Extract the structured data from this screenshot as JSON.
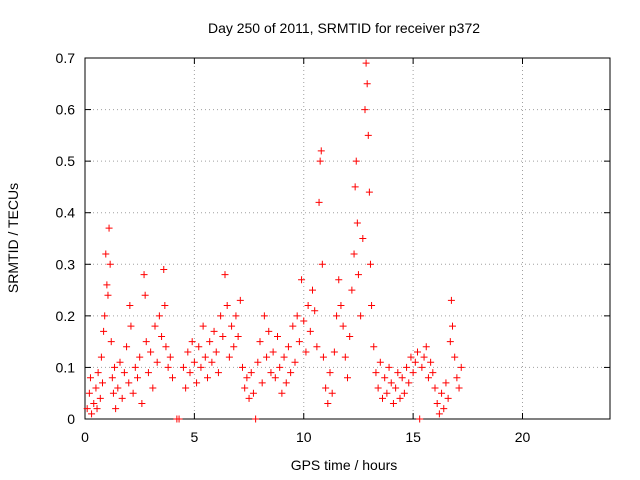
{
  "chart_data": {
    "type": "scatter",
    "title": "Day 250 of 2011, SRMTID for receiver p372",
    "xlabel": "GPS time / hours",
    "ylabel": "SRMTID / TECUs",
    "xlim": [
      0,
      24
    ],
    "ylim": [
      0,
      0.7
    ],
    "xticks": [
      0,
      5,
      10,
      15,
      20
    ],
    "xtick_labels": [
      "0",
      "5",
      "10",
      "15",
      "20"
    ],
    "yticks": [
      0,
      0.1,
      0.2,
      0.3,
      0.4,
      0.5,
      0.6,
      0.7
    ],
    "ytick_labels": [
      "0",
      "0.1",
      "0.2",
      "0.3",
      "0.4",
      "0.5",
      "0.6",
      "0.7"
    ],
    "grid": true,
    "marker": "+",
    "marker_color": "#ff0000",
    "series": [
      {
        "name": "SRMTID",
        "points": [
          [
            0.1,
            0.02
          ],
          [
            0.2,
            0.05
          ],
          [
            0.25,
            0.08
          ],
          [
            0.3,
            0.01
          ],
          [
            0.4,
            0.03
          ],
          [
            0.5,
            0.06
          ],
          [
            0.55,
            0.02
          ],
          [
            0.6,
            0.09
          ],
          [
            0.7,
            0.04
          ],
          [
            0.75,
            0.12
          ],
          [
            0.8,
            0.07
          ],
          [
            0.85,
            0.17
          ],
          [
            0.9,
            0.2
          ],
          [
            0.95,
            0.32
          ],
          [
            1.0,
            0.26
          ],
          [
            1.05,
            0.24
          ],
          [
            1.1,
            0.37
          ],
          [
            1.15,
            0.3
          ],
          [
            1.2,
            0.15
          ],
          [
            1.25,
            0.08
          ],
          [
            1.3,
            0.05
          ],
          [
            1.35,
            0.1
          ],
          [
            1.4,
            0.02
          ],
          [
            1.5,
            0.06
          ],
          [
            1.6,
            0.11
          ],
          [
            1.7,
            0.04
          ],
          [
            1.8,
            0.09
          ],
          [
            1.9,
            0.14
          ],
          [
            2.0,
            0.07
          ],
          [
            2.05,
            0.22
          ],
          [
            2.1,
            0.18
          ],
          [
            2.2,
            0.05
          ],
          [
            2.3,
            0.1
          ],
          [
            2.4,
            0.08
          ],
          [
            2.5,
            0.12
          ],
          [
            2.6,
            0.03
          ],
          [
            2.7,
            0.28
          ],
          [
            2.75,
            0.24
          ],
          [
            2.8,
            0.15
          ],
          [
            2.9,
            0.09
          ],
          [
            3.0,
            0.13
          ],
          [
            3.1,
            0.06
          ],
          [
            3.2,
            0.18
          ],
          [
            3.3,
            0.11
          ],
          [
            3.4,
            0.2
          ],
          [
            3.5,
            0.16
          ],
          [
            3.6,
            0.29
          ],
          [
            3.65,
            0.22
          ],
          [
            3.7,
            0.14
          ],
          [
            3.8,
            0.1
          ],
          [
            3.9,
            0.12
          ],
          [
            4.0,
            0.08
          ],
          [
            4.2,
            0.0
          ],
          [
            4.3,
            0.0
          ],
          [
            4.5,
            0.1
          ],
          [
            4.6,
            0.06
          ],
          [
            4.7,
            0.13
          ],
          [
            4.8,
            0.09
          ],
          [
            4.9,
            0.15
          ],
          [
            5.0,
            0.11
          ],
          [
            5.1,
            0.07
          ],
          [
            5.2,
            0.14
          ],
          [
            5.3,
            0.1
          ],
          [
            5.4,
            0.18
          ],
          [
            5.5,
            0.12
          ],
          [
            5.6,
            0.08
          ],
          [
            5.7,
            0.15
          ],
          [
            5.8,
            0.11
          ],
          [
            5.9,
            0.17
          ],
          [
            6.0,
            0.13
          ],
          [
            6.1,
            0.09
          ],
          [
            6.2,
            0.2
          ],
          [
            6.3,
            0.16
          ],
          [
            6.4,
            0.28
          ],
          [
            6.5,
            0.22
          ],
          [
            6.6,
            0.12
          ],
          [
            6.7,
            0.18
          ],
          [
            6.8,
            0.14
          ],
          [
            6.9,
            0.2
          ],
          [
            7.0,
            0.16
          ],
          [
            7.1,
            0.23
          ],
          [
            7.2,
            0.1
          ],
          [
            7.3,
            0.06
          ],
          [
            7.4,
            0.08
          ],
          [
            7.5,
            0.04
          ],
          [
            7.6,
            0.09
          ],
          [
            7.7,
            0.05
          ],
          [
            7.8,
            0.0
          ],
          [
            7.9,
            0.11
          ],
          [
            8.0,
            0.15
          ],
          [
            8.1,
            0.07
          ],
          [
            8.2,
            0.2
          ],
          [
            8.3,
            0.12
          ],
          [
            8.4,
            0.17
          ],
          [
            8.5,
            0.09
          ],
          [
            8.6,
            0.13
          ],
          [
            8.7,
            0.08
          ],
          [
            8.8,
            0.16
          ],
          [
            8.9,
            0.1
          ],
          [
            9.0,
            0.05
          ],
          [
            9.1,
            0.12
          ],
          [
            9.2,
            0.07
          ],
          [
            9.3,
            0.14
          ],
          [
            9.4,
            0.09
          ],
          [
            9.5,
            0.18
          ],
          [
            9.6,
            0.11
          ],
          [
            9.7,
            0.2
          ],
          [
            9.8,
            0.15
          ],
          [
            9.9,
            0.27
          ],
          [
            10.0,
            0.19
          ],
          [
            10.1,
            0.13
          ],
          [
            10.2,
            0.22
          ],
          [
            10.3,
            0.17
          ],
          [
            10.4,
            0.25
          ],
          [
            10.5,
            0.21
          ],
          [
            10.6,
            0.14
          ],
          [
            10.7,
            0.42
          ],
          [
            10.75,
            0.5
          ],
          [
            10.8,
            0.52
          ],
          [
            10.85,
            0.3
          ],
          [
            10.9,
            0.12
          ],
          [
            11.0,
            0.06
          ],
          [
            11.1,
            0.03
          ],
          [
            11.2,
            0.09
          ],
          [
            11.3,
            0.05
          ],
          [
            11.4,
            0.13
          ],
          [
            11.5,
            0.2
          ],
          [
            11.6,
            0.27
          ],
          [
            11.7,
            0.22
          ],
          [
            11.8,
            0.18
          ],
          [
            11.9,
            0.12
          ],
          [
            12.0,
            0.08
          ],
          [
            12.1,
            0.16
          ],
          [
            12.2,
            0.25
          ],
          [
            12.3,
            0.32
          ],
          [
            12.35,
            0.45
          ],
          [
            12.4,
            0.5
          ],
          [
            12.45,
            0.38
          ],
          [
            12.5,
            0.28
          ],
          [
            12.6,
            0.2
          ],
          [
            12.7,
            0.35
          ],
          [
            12.8,
            0.6
          ],
          [
            12.85,
            0.69
          ],
          [
            12.9,
            0.65
          ],
          [
            12.95,
            0.55
          ],
          [
            13.0,
            0.44
          ],
          [
            13.05,
            0.3
          ],
          [
            13.1,
            0.22
          ],
          [
            13.2,
            0.14
          ],
          [
            13.3,
            0.09
          ],
          [
            13.4,
            0.06
          ],
          [
            13.5,
            0.11
          ],
          [
            13.6,
            0.04
          ],
          [
            13.7,
            0.08
          ],
          [
            13.8,
            0.05
          ],
          [
            13.9,
            0.1
          ],
          [
            14.0,
            0.07
          ],
          [
            14.1,
            0.03
          ],
          [
            14.2,
            0.06
          ],
          [
            14.3,
            0.09
          ],
          [
            14.4,
            0.04
          ],
          [
            14.5,
            0.08
          ],
          [
            14.6,
            0.05
          ],
          [
            14.7,
            0.1
          ],
          [
            14.8,
            0.07
          ],
          [
            14.9,
            0.12
          ],
          [
            15.0,
            0.09
          ],
          [
            15.1,
            0.11
          ],
          [
            15.2,
            0.13
          ],
          [
            15.3,
            0.0
          ],
          [
            15.4,
            0.1
          ],
          [
            15.5,
            0.12
          ],
          [
            15.6,
            0.14
          ],
          [
            15.7,
            0.08
          ],
          [
            15.8,
            0.11
          ],
          [
            15.9,
            0.09
          ],
          [
            16.0,
            0.06
          ],
          [
            16.1,
            0.03
          ],
          [
            16.2,
            0.01
          ],
          [
            16.3,
            0.05
          ],
          [
            16.4,
            0.02
          ],
          [
            16.5,
            0.07
          ],
          [
            16.6,
            0.04
          ],
          [
            16.7,
            0.15
          ],
          [
            16.75,
            0.23
          ],
          [
            16.8,
            0.18
          ],
          [
            16.9,
            0.12
          ],
          [
            17.0,
            0.08
          ],
          [
            17.1,
            0.06
          ],
          [
            17.2,
            0.1
          ]
        ]
      }
    ]
  }
}
